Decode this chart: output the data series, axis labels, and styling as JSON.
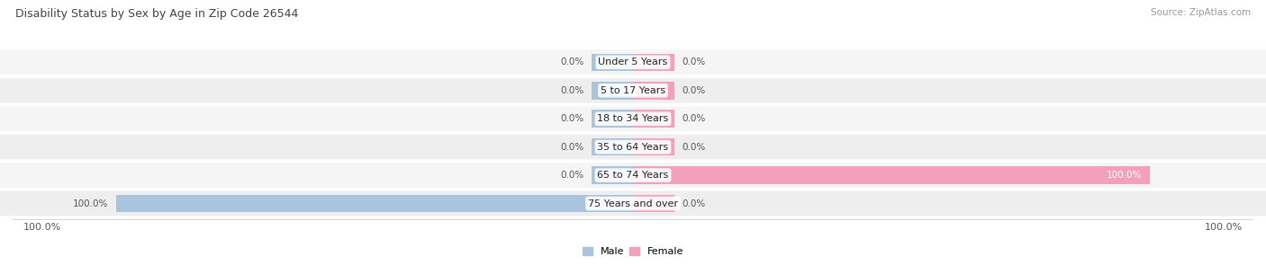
{
  "title": "Disability Status by Sex by Age in Zip Code 26544",
  "source": "Source: ZipAtlas.com",
  "categories": [
    "Under 5 Years",
    "5 to 17 Years",
    "18 to 34 Years",
    "35 to 64 Years",
    "65 to 74 Years",
    "75 Years and over"
  ],
  "male_values": [
    0.0,
    0.0,
    0.0,
    0.0,
    0.0,
    100.0
  ],
  "female_values": [
    0.0,
    0.0,
    0.0,
    0.0,
    100.0,
    0.0
  ],
  "male_color": "#aac4de",
  "female_color": "#f2a0bc",
  "row_colors": [
    "#f5f5f5",
    "#eeeeee",
    "#f5f5f5",
    "#eeeeee",
    "#f5f5f5",
    "#eeeeee"
  ],
  "label_color": "#555555",
  "title_color": "#444444",
  "stub_size": 8.0,
  "full_size": 100.0,
  "figsize": [
    14.06,
    3.05
  ],
  "dpi": 100
}
